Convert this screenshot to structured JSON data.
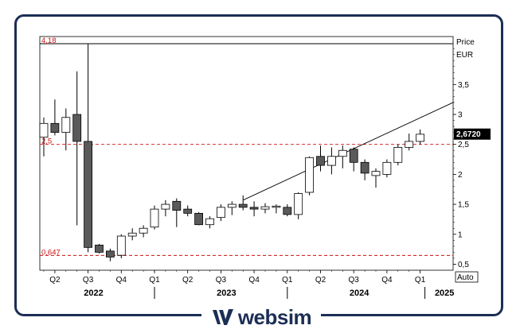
{
  "chart_data": {
    "type": "candlestick",
    "price_label": "Price",
    "currency_label": "EUR",
    "last_price": "2,6720",
    "auto_label": "Auto",
    "ylim": [
      0.4,
      4.3
    ],
    "y_ticks": [
      {
        "value": 0.5,
        "label": "0,5"
      },
      {
        "value": 1,
        "label": "1"
      },
      {
        "value": 1.5,
        "label": "1,5"
      },
      {
        "value": 2,
        "label": "2"
      },
      {
        "value": 2.5,
        "label": "2,5"
      },
      {
        "value": 3,
        "label": "3"
      },
      {
        "value": 3.5,
        "label": "3,5"
      }
    ],
    "horizontal_lines": [
      {
        "value": 4.18,
        "label": "4,18",
        "style": "solid",
        "color": "#000000"
      },
      {
        "value": 2.5,
        "label": "2,5",
        "style": "dashed",
        "color": "#cc1111"
      },
      {
        "value": 0.647,
        "label": "0,647",
        "style": "dashed",
        "color": "#cc1111"
      }
    ],
    "trendline": {
      "from": [
        18,
        1.57
      ],
      "to": [
        50,
        3.2
      ]
    },
    "quarter_labels": [
      {
        "index": 1,
        "label": "Q2"
      },
      {
        "index": 4,
        "label": "Q3"
      },
      {
        "index": 7,
        "label": "Q4"
      },
      {
        "index": 10,
        "label": "Q1"
      },
      {
        "index": 13,
        "label": "Q2"
      },
      {
        "index": 16,
        "label": "Q3"
      },
      {
        "index": 19,
        "label": "Q4"
      },
      {
        "index": 22,
        "label": "Q1"
      },
      {
        "index": 25,
        "label": "Q2"
      },
      {
        "index": 28,
        "label": "Q3"
      },
      {
        "index": 31,
        "label": "Q4"
      },
      {
        "index": 34,
        "label": "Q1"
      }
    ],
    "year_labels": [
      {
        "index": 4.5,
        "label": "2022"
      },
      {
        "index": 16.5,
        "label": "2023"
      },
      {
        "index": 28.5,
        "label": "2024"
      },
      {
        "index": 36.2,
        "label": "2025"
      }
    ],
    "year_separators": [
      10,
      22,
      34
    ],
    "candles": [
      {
        "o": 2.62,
        "h": 2.95,
        "l": 2.3,
        "c": 2.85
      },
      {
        "o": 2.85,
        "h": 3.25,
        "l": 2.65,
        "c": 2.7
      },
      {
        "o": 2.7,
        "h": 3.1,
        "l": 2.4,
        "c": 2.95
      },
      {
        "o": 3.0,
        "h": 3.72,
        "l": 1.15,
        "c": 2.55
      },
      {
        "o": 2.55,
        "h": 4.18,
        "l": 0.7,
        "c": 0.78
      },
      {
        "o": 0.82,
        "h": 0.84,
        "l": 0.68,
        "c": 0.7
      },
      {
        "o": 0.72,
        "h": 0.76,
        "l": 0.55,
        "c": 0.62
      },
      {
        "o": 0.65,
        "h": 1.0,
        "l": 0.6,
        "c": 0.97
      },
      {
        "o": 0.97,
        "h": 1.1,
        "l": 0.9,
        "c": 1.02
      },
      {
        "o": 1.02,
        "h": 1.15,
        "l": 0.95,
        "c": 1.1
      },
      {
        "o": 1.12,
        "h": 1.48,
        "l": 1.08,
        "c": 1.42
      },
      {
        "o": 1.42,
        "h": 1.57,
        "l": 1.3,
        "c": 1.5
      },
      {
        "o": 1.55,
        "h": 1.6,
        "l": 1.12,
        "c": 1.4
      },
      {
        "o": 1.42,
        "h": 1.48,
        "l": 1.3,
        "c": 1.35
      },
      {
        "o": 1.35,
        "h": 1.37,
        "l": 1.15,
        "c": 1.16
      },
      {
        "o": 1.16,
        "h": 1.3,
        "l": 1.1,
        "c": 1.26
      },
      {
        "o": 1.28,
        "h": 1.5,
        "l": 1.22,
        "c": 1.45
      },
      {
        "o": 1.45,
        "h": 1.55,
        "l": 1.32,
        "c": 1.5
      },
      {
        "o": 1.5,
        "h": 1.65,
        "l": 1.4,
        "c": 1.45
      },
      {
        "o": 1.45,
        "h": 1.55,
        "l": 1.3,
        "c": 1.42
      },
      {
        "o": 1.42,
        "h": 1.52,
        "l": 1.35,
        "c": 1.46
      },
      {
        "o": 1.45,
        "h": 1.5,
        "l": 1.35,
        "c": 1.47
      },
      {
        "o": 1.45,
        "h": 1.5,
        "l": 1.3,
        "c": 1.33
      },
      {
        "o": 1.33,
        "h": 1.7,
        "l": 1.25,
        "c": 1.68
      },
      {
        "o": 1.7,
        "h": 2.3,
        "l": 1.65,
        "c": 2.28
      },
      {
        "o": 2.3,
        "h": 2.48,
        "l": 2.05,
        "c": 2.15
      },
      {
        "o": 2.15,
        "h": 2.45,
        "l": 2.0,
        "c": 2.3
      },
      {
        "o": 2.3,
        "h": 2.48,
        "l": 2.1,
        "c": 2.4
      },
      {
        "o": 2.42,
        "h": 2.45,
        "l": 2.05,
        "c": 2.2
      },
      {
        "o": 2.2,
        "h": 2.25,
        "l": 1.9,
        "c": 2.02
      },
      {
        "o": 1.98,
        "h": 2.1,
        "l": 1.78,
        "c": 2.05
      },
      {
        "o": 2.0,
        "h": 2.25,
        "l": 1.95,
        "c": 2.2
      },
      {
        "o": 2.2,
        "h": 2.5,
        "l": 2.15,
        "c": 2.45
      },
      {
        "o": 2.45,
        "h": 2.68,
        "l": 2.4,
        "c": 2.55
      },
      {
        "o": 2.55,
        "h": 2.75,
        "l": 2.5,
        "c": 2.67
      }
    ]
  },
  "brand": {
    "name": "websim",
    "color": "#1c2e55"
  }
}
